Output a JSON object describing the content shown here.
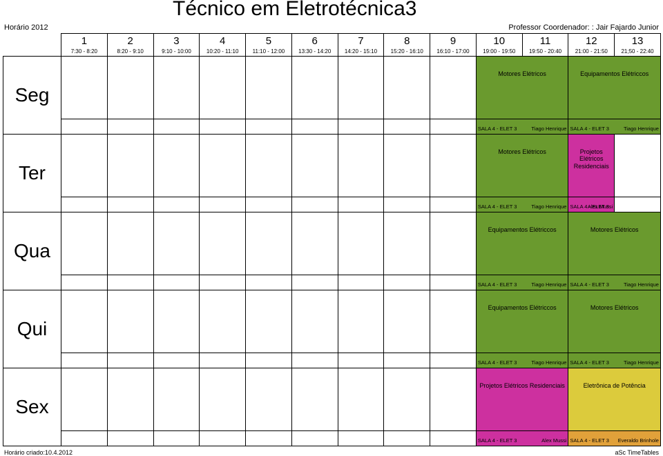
{
  "header": {
    "year_label": "Horário 2012",
    "title": "Técnico em Eletrotécnica3",
    "coordinator_label": "Professor Coordenador: : Jair Fajardo Junior"
  },
  "colors": {
    "green": "#6a9a2e",
    "magenta": "#cd309f",
    "yellow": "#dccb3c",
    "orange": "#e1a13a"
  },
  "periods": [
    {
      "n": "1",
      "time": "7:30 - 8:20"
    },
    {
      "n": "2",
      "time": "8:20 - 9:10"
    },
    {
      "n": "3",
      "time": "9:10 - 10:00"
    },
    {
      "n": "4",
      "time": "10:20 - 11:10"
    },
    {
      "n": "5",
      "time": "11:10 - 12:00"
    },
    {
      "n": "6",
      "time": "13:30 - 14:20"
    },
    {
      "n": "7",
      "time": "14:20 - 15:10"
    },
    {
      "n": "8",
      "time": "15:20 - 16:10"
    },
    {
      "n": "9",
      "time": "16:10 - 17:00"
    },
    {
      "n": "10",
      "time": "19:00 - 19:50"
    },
    {
      "n": "11",
      "time": "19:50 - 20:40"
    },
    {
      "n": "12",
      "time": "21:00 - 21:50"
    },
    {
      "n": "13",
      "time": "21;50 - 22:40"
    }
  ],
  "days": [
    {
      "label": "Seg",
      "main": [
        {
          "start": 10,
          "span": 2,
          "color": "green",
          "subject": "Motores Elétricos"
        },
        {
          "start": 12,
          "span": 2,
          "color": "green",
          "subject": "Equipamentos Elétriccos"
        }
      ],
      "foot": [
        {
          "start": 10,
          "span": 2,
          "color": "green",
          "room": "SALA 4 - ELET 3",
          "teacher": "Tiago Henrique"
        },
        {
          "start": 12,
          "span": 2,
          "color": "green",
          "room": "SALA 4 - ELET 3",
          "teacher": "Tiago Henrique"
        }
      ]
    },
    {
      "label": "Ter",
      "main": [
        {
          "start": 10,
          "span": 2,
          "color": "green",
          "subject": "Motores Elétricos"
        },
        {
          "start": 12,
          "span": 1,
          "color": "magenta",
          "subject": "Projetos Elétricos Residenciais"
        }
      ],
      "foot": [
        {
          "start": 10,
          "span": 2,
          "color": "green",
          "room": "SALA 4 - ELET 3",
          "teacher": "Tiago Henrique"
        },
        {
          "start": 12,
          "span": 1,
          "color": "magenta",
          "room": "SALA 4 - ELET 3",
          "teacher": "Alex Mussi"
        }
      ]
    },
    {
      "label": "Qua",
      "main": [
        {
          "start": 10,
          "span": 2,
          "color": "green",
          "subject": "Equipamentos Elétriccos"
        },
        {
          "start": 12,
          "span": 2,
          "color": "green",
          "subject": "Motores Elétricos"
        }
      ],
      "foot": [
        {
          "start": 10,
          "span": 2,
          "color": "green",
          "room": "SALA 4 - ELET 3",
          "teacher": "Tiago Henrique"
        },
        {
          "start": 12,
          "span": 2,
          "color": "green",
          "room": "SALA 4 - ELET 3",
          "teacher": "Tiago Henrique"
        }
      ]
    },
    {
      "label": "Qui",
      "main": [
        {
          "start": 10,
          "span": 2,
          "color": "green",
          "subject": "Equipamentos Elétriccos"
        },
        {
          "start": 12,
          "span": 2,
          "color": "green",
          "subject": "Motores Elétricos"
        }
      ],
      "foot": [
        {
          "start": 10,
          "span": 2,
          "color": "green",
          "room": "SALA 4 - ELET 3",
          "teacher": "Tiago Henrique"
        },
        {
          "start": 12,
          "span": 2,
          "color": "green",
          "room": "SALA 4 - ELET 3",
          "teacher": "Tiago Henrique"
        }
      ]
    },
    {
      "label": "Sex",
      "main": [
        {
          "start": 10,
          "span": 2,
          "color": "magenta",
          "subject": "Projetos Elétricos Residenciais"
        },
        {
          "start": 12,
          "span": 2,
          "color": "yellow",
          "subject": "Eletrônica de Potência"
        }
      ],
      "foot": [
        {
          "start": 10,
          "span": 2,
          "color": "magenta",
          "room": "SALA 4 - ELET 3",
          "teacher": "Alex Mussi"
        },
        {
          "start": 12,
          "span": 2,
          "color": "orange",
          "room": "SALA 4 - ELET 3",
          "teacher": "Everaldo Brinhole"
        }
      ]
    }
  ],
  "footer": {
    "left": "Horário criado:10.4.2012",
    "right": "aSc TimeTables"
  }
}
